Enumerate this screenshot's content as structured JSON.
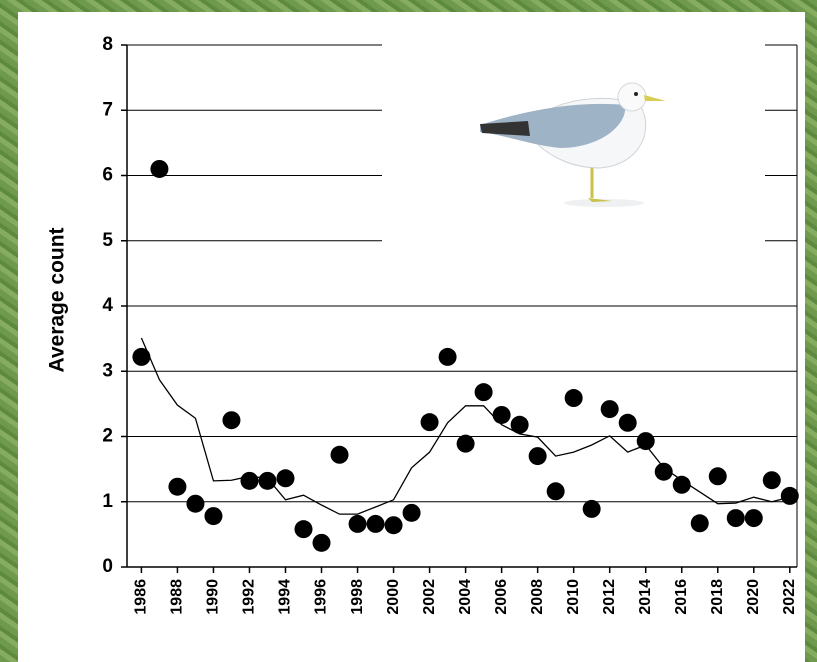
{
  "chart_data": {
    "type": "scatter",
    "y_label": "Average count",
    "x": [
      1986,
      1987,
      1988,
      1989,
      1990,
      1991,
      1992,
      1993,
      1994,
      1995,
      1996,
      1997,
      1998,
      1999,
      2000,
      2001,
      2002,
      2003,
      2004,
      2005,
      2006,
      2007,
      2008,
      2009,
      2010,
      2011,
      2012,
      2013,
      2014,
      2015,
      2016,
      2017,
      2018,
      2019,
      2020,
      2021,
      2022
    ],
    "series": [
      {
        "mode": "markers",
        "color": "#000000",
        "values": [
          3.22,
          6.1,
          1.23,
          0.97,
          0.78,
          2.25,
          1.32,
          1.32,
          1.36,
          0.58,
          0.37,
          1.72,
          0.66,
          0.66,
          0.64,
          0.83,
          2.22,
          3.22,
          1.89,
          2.68,
          2.33,
          2.18,
          1.7,
          1.16,
          2.59,
          0.89,
          2.42,
          2.21,
          1.93,
          1.46,
          1.26,
          0.67,
          1.39,
          0.75,
          0.75,
          1.33,
          1.09
        ]
      },
      {
        "mode": "line",
        "color": "#000000",
        "values": [
          3.51,
          2.87,
          2.48,
          2.28,
          1.32,
          1.33,
          1.39,
          1.36,
          1.03,
          1.1,
          0.95,
          0.81,
          0.81,
          0.92,
          1.03,
          1.52,
          1.76,
          2.21,
          2.47,
          2.47,
          2.18,
          2.04,
          1.99,
          1.7,
          1.76,
          1.87,
          2.01,
          1.76,
          1.87,
          1.52,
          1.33,
          1.15,
          0.97,
          0.98,
          1.07,
          1.0,
          1.07
        ]
      }
    ],
    "xlim": [
      1985.2,
      2022.4
    ],
    "xticks": [
      1986,
      1988,
      1990,
      1992,
      1994,
      1996,
      1998,
      2000,
      2002,
      2004,
      2006,
      2008,
      2010,
      2012,
      2014,
      2016,
      2018,
      2020,
      2022
    ],
    "ylim": [
      0,
      8
    ],
    "yticks": [
      0,
      1,
      2,
      3,
      4,
      5,
      6,
      7,
      8
    ],
    "grid": true
  }
}
